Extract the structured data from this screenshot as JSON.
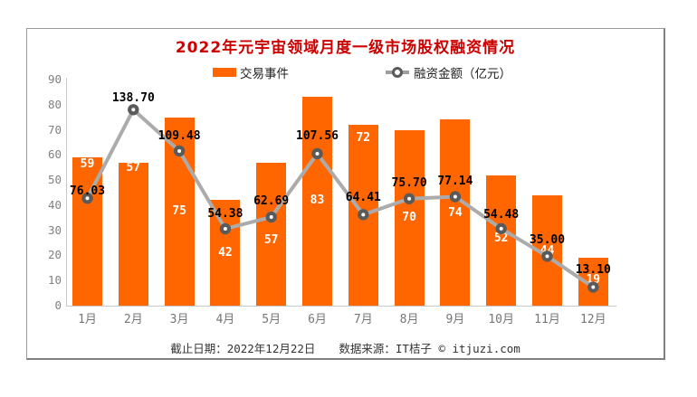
{
  "chart_data": {
    "type": "bar",
    "title": "2022年元宇宙领域月度一级市场股权融资情况",
    "categories": [
      "1月",
      "2月",
      "3月",
      "4月",
      "5月",
      "6月",
      "7月",
      "8月",
      "9月",
      "10月",
      "11月",
      "12月"
    ],
    "series": [
      {
        "name": "交易事件",
        "type": "bar",
        "axis": "left",
        "color": "#ff6600",
        "label_color": "#ffffff",
        "values": [
          59,
          57,
          75,
          42,
          57,
          83,
          72,
          70,
          74,
          52,
          44,
          19
        ]
      },
      {
        "name": "融资金额（亿元）",
        "type": "line",
        "axis": "right",
        "color": "#ababab",
        "marker_color": "#5a5a5a",
        "label_color": "#000000",
        "values": [
          76.03,
          138.7,
          109.48,
          54.38,
          62.69,
          107.56,
          64.41,
          75.7,
          77.14,
          54.48,
          35.0,
          13.1
        ],
        "value_labels": [
          "76.03",
          "138.70",
          "109.48",
          "54.38",
          "62.69",
          "107.56",
          "64.41",
          "75.70",
          "77.14",
          "54.48",
          "35.00",
          "13.10"
        ]
      }
    ],
    "ylim": [
      0,
      90
    ],
    "y_ticks": [
      0,
      10,
      20,
      30,
      40,
      50,
      60,
      70,
      80,
      90
    ],
    "y2lim": [
      0,
      160
    ],
    "grid": false,
    "legend_position": "top-center",
    "xlabel": "",
    "ylabel": "",
    "layout_hints": {
      "bar_label_dy": [
        8,
        6,
        104,
        59,
        86,
        115,
        15,
        97,
        104,
        70,
        62,
        25
      ],
      "line_label_dy": [
        -7,
        -12,
        -16,
        -16,
        -17,
        -19,
        -18,
        -17,
        -16,
        -15,
        -17,
        -19
      ]
    }
  },
  "footer": {
    "date_note": "截止日期：2022年12月22日",
    "source_note": "数据来源：IT桔子 © itjuzi.com"
  },
  "colors": {
    "title": "#cc0000",
    "bar": "#ff6600",
    "line": "#ababab",
    "marker": "#5a5a5a",
    "axis_text": "#808080",
    "panel_border": "#9b9b9b"
  }
}
